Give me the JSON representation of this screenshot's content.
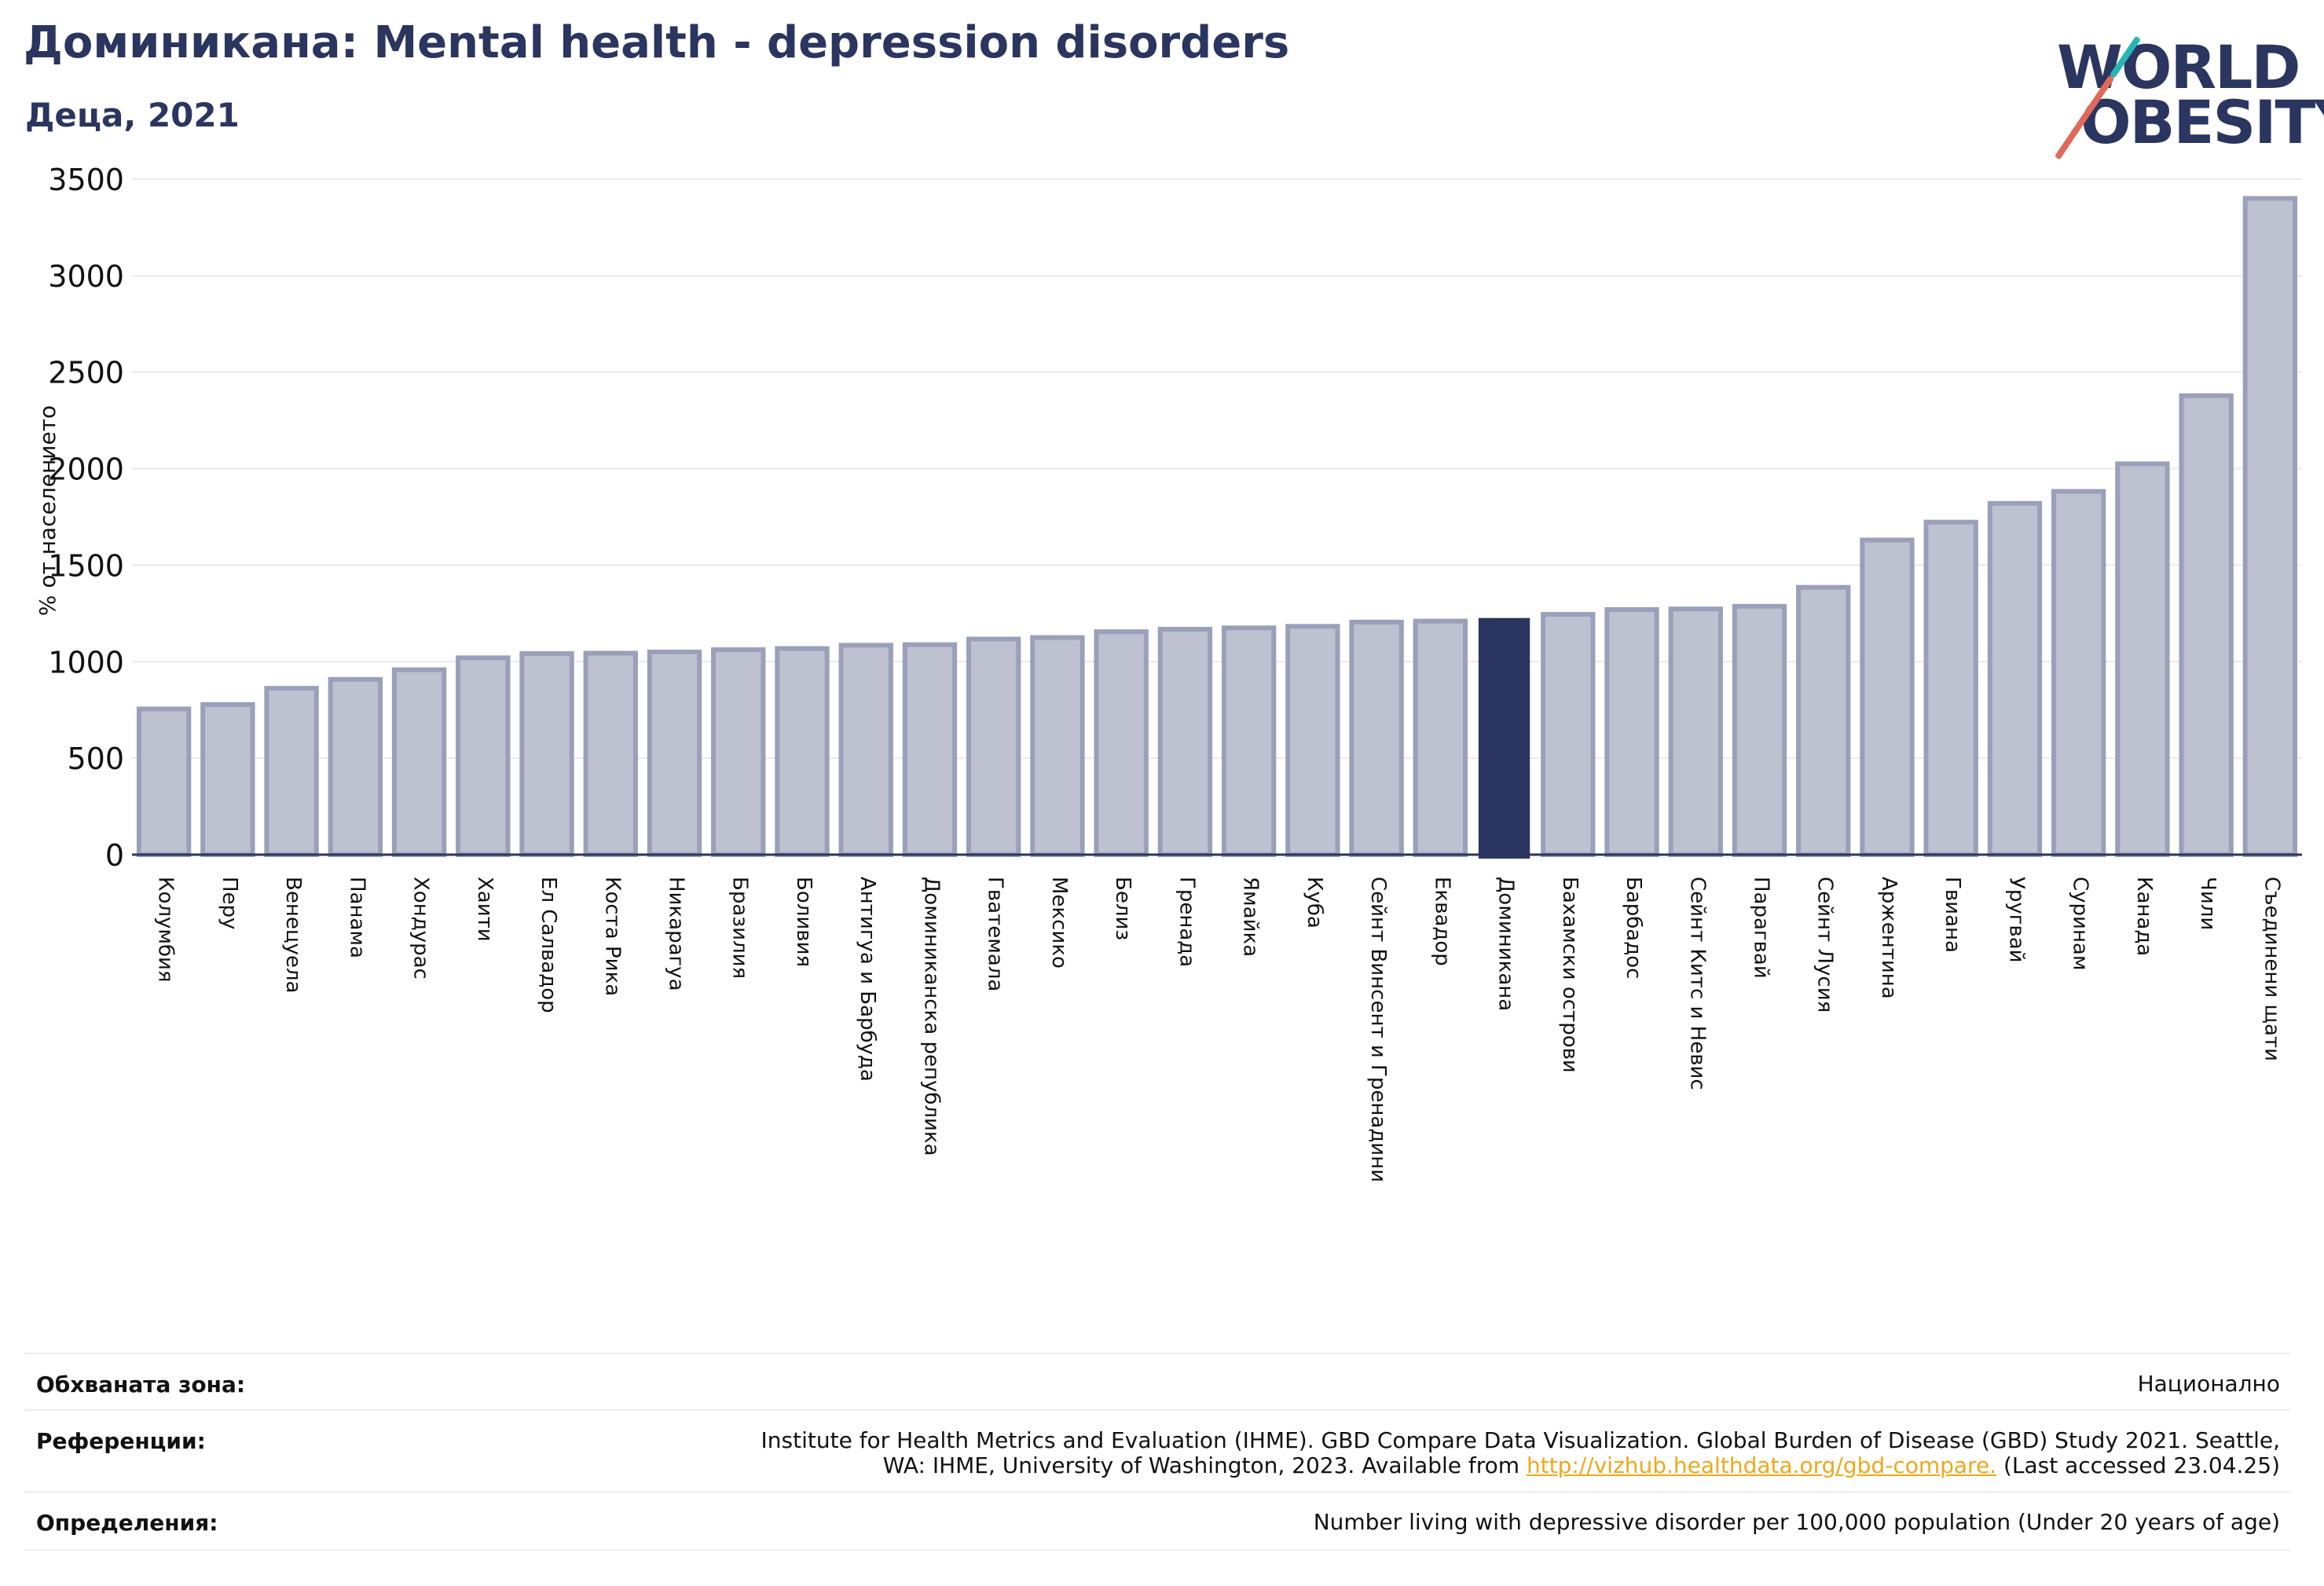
{
  "title": "Доминикана: Mental health - depression disorders",
  "subtitle": "Деца, 2021",
  "logo": {
    "line1": "WORLD",
    "line2": "OBESITY"
  },
  "colors": {
    "bar": "#bec1cf",
    "bar_border": "#9aa0b9",
    "highlight": "#2a3560",
    "grid": "#e8e9ee",
    "axis": "#2a3560",
    "title": "#2a3560"
  },
  "chart_data": {
    "type": "bar",
    "ylabel": "% от населението",
    "ylim": [
      0,
      3500
    ],
    "yticks": [
      0,
      500,
      1000,
      1500,
      2000,
      2500,
      3000,
      3500
    ],
    "grid": true,
    "highlight": "Доминикана",
    "categories": [
      "Колумбия",
      "Перу",
      "Венецуела",
      "Панама",
      "Хондурас",
      "Хаити",
      "Ел Салвадор",
      "Коста Рика",
      "Никарагуа",
      "Бразилия",
      "Боливия",
      "Антигуа и Барбуда",
      "Доминиканска република",
      "Гватемала",
      "Мексико",
      "Белиз",
      "Гренада",
      "Ямайка",
      "Куба",
      "Сейнт Винсент и Гренадини",
      "Еквадор",
      "Доминикана",
      "Бахамски острови",
      "Барбадос",
      "Сейнт Китс и Невис",
      "Парагвай",
      "Сейнт Лусия",
      "Аржентина",
      "Гвиана",
      "Уругвай",
      "Суринам",
      "Канада",
      "Чили",
      "Съединени щати"
    ],
    "values": [
      755,
      778,
      862,
      908,
      958,
      1020,
      1042,
      1044,
      1050,
      1062,
      1068,
      1085,
      1088,
      1117,
      1125,
      1155,
      1168,
      1175,
      1183,
      1205,
      1210,
      1222,
      1245,
      1270,
      1273,
      1287,
      1385,
      1630,
      1723,
      1820,
      1882,
      2025,
      2378,
      3400
    ]
  },
  "footer": {
    "coverage_label": "Обхваната зона:",
    "coverage_value": "Национално",
    "references_label": "Референции:",
    "references_line1": "Institute for Health Metrics and Evaluation (IHME). GBD Compare Data Visualization. Global Burden of Disease (GBD) Study 2021. Seattle,",
    "references_line2_pre": "WA: IHME, University of Washington, 2023. Available from ",
    "references_link": "http://vizhub.healthdata.org/gbd-compare.",
    "references_line2_post": " (Last accessed 23.04.25)",
    "definitions_label": "Определения:",
    "definitions_value": "Number living with depressive disorder per 100,000 population (Under 20 years of age)"
  }
}
